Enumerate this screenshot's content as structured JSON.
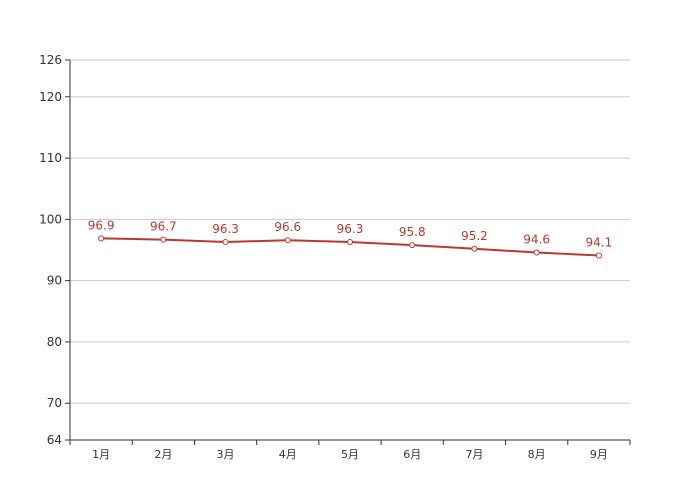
{
  "chart_data": {
    "type": "line",
    "title": "",
    "xlabel": "",
    "ylabel": "",
    "categories": [
      "1月",
      "2月",
      "3月",
      "4月",
      "5月",
      "6月",
      "7月",
      "8月",
      "9月"
    ],
    "series": [
      {
        "values": [
          96.9,
          96.7,
          96.3,
          96.6,
          96.3,
          95.8,
          95.2,
          94.6,
          94.1
        ],
        "color": "#c23531"
      }
    ],
    "ylim": [
      64,
      126
    ],
    "yticks": [
      64,
      70,
      80,
      90,
      100,
      110,
      120,
      126
    ],
    "grid": true,
    "legend": "none",
    "data_labels": true
  }
}
